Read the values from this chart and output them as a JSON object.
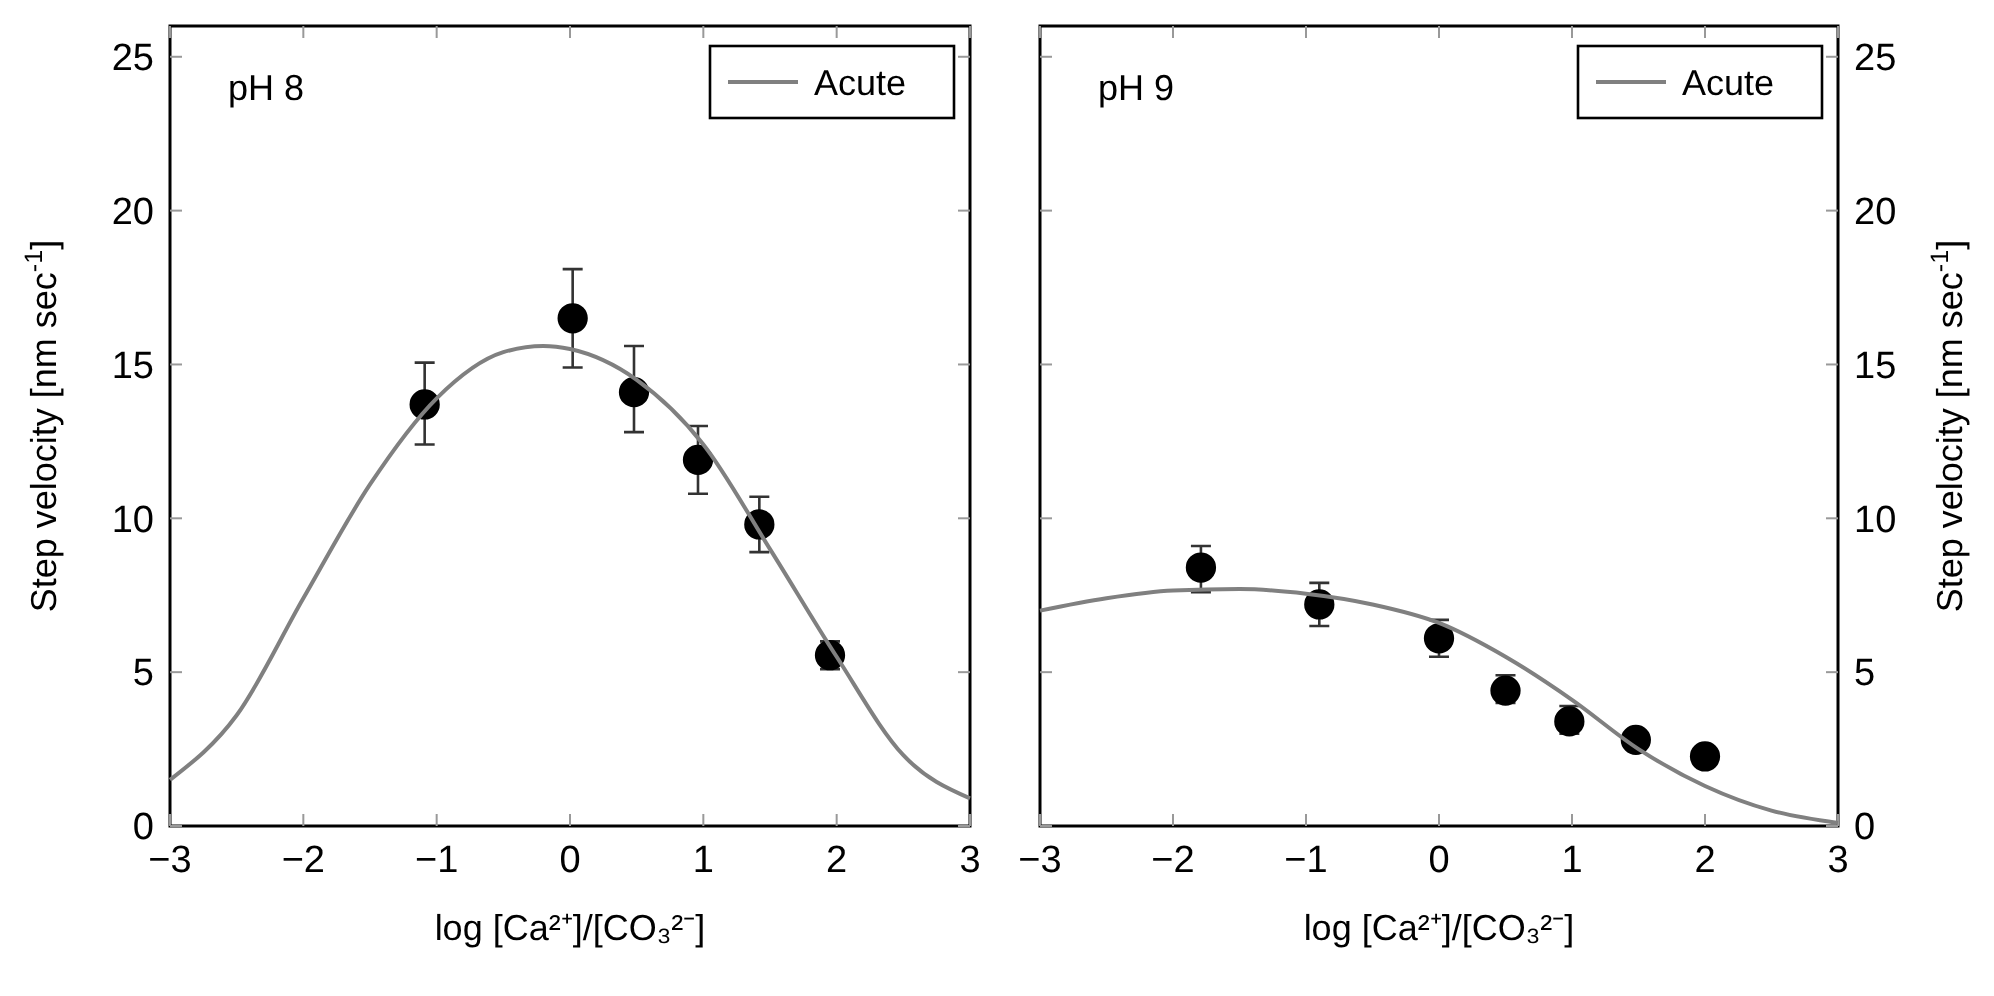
{
  "chart_data": [
    {
      "type": "scatter",
      "annotations": [
        "pH 8"
      ],
      "xlabel": "log [Ca²⁺]/[CO₃²⁻]",
      "ylabel": "Step velocity [nm sec$^{-1}$]",
      "xlim": [
        -3,
        3
      ],
      "xticks": [
        -3,
        -2,
        -1,
        0,
        1,
        2,
        3
      ],
      "ylim": [
        0,
        26
      ],
      "yticks": [
        0,
        5,
        10,
        15,
        20,
        25
      ],
      "legend": "top right",
      "grid": false,
      "series": [
        {
          "marker": "circle",
          "color": "#000000",
          "x": [
            -1.09,
            0.02,
            0.48,
            0.96,
            1.42,
            1.95
          ],
          "values": [
            13.7,
            16.5,
            14.1,
            11.9,
            9.8,
            5.55
          ],
          "errors": [
            [
              12.4,
              15.06
            ],
            [
              14.9,
              18.1
            ],
            [
              12.8,
              15.6
            ],
            [
              10.8,
              13.0
            ],
            [
              8.9,
              10.7
            ],
            [
              5.1,
              6.0
            ]
          ]
        },
        {
          "type": "line",
          "name": "Acute",
          "color": "#808080",
          "x": [
            -3,
            -2.5,
            -2,
            -1.5,
            -1,
            -0.5,
            -0.2,
            0,
            0.5,
            1,
            1.5,
            2,
            2.5,
            3
          ],
          "values": [
            1.5,
            3.6,
            7.4,
            11.1,
            13.9,
            15.4,
            15.6,
            15.5,
            14.5,
            12.4,
            9.0,
            5.5,
            2.3,
            0.9
          ]
        }
      ]
    },
    {
      "type": "scatter",
      "annotations": [
        "pH 9"
      ],
      "xlabel": "log [Ca²⁺]/[CO₃²⁻]",
      "y2label": "Step velocity [nm sec$^{-1}$]",
      "xlim": [
        -3,
        3
      ],
      "xticks": [
        -3,
        -2,
        -1,
        0,
        1,
        2,
        3
      ],
      "y2lim": [
        0,
        26
      ],
      "y2ticks": [
        0,
        5,
        10,
        15,
        20,
        25
      ],
      "legend": "top right",
      "grid": false,
      "series": [
        {
          "marker": "circle",
          "axis": "y2",
          "color": "#000000",
          "x": [
            -1.79,
            -0.9,
            0,
            0.5,
            0.98,
            1.48,
            2
          ],
          "values": [
            8.4,
            7.2,
            6.1,
            4.4,
            3.4,
            2.8,
            2.26
          ],
          "errors": [
            [
              7.6,
              9.1
            ],
            [
              6.5,
              7.9
            ],
            [
              5.5,
              6.7
            ],
            [
              4.0,
              4.9
            ],
            [
              3.0,
              3.9
            ],
            null,
            null
          ]
        },
        {
          "type": "line",
          "axis": "y2",
          "name": "Acute",
          "color": "#808080",
          "x": [
            -3,
            -2.5,
            -2,
            -1.5,
            -1,
            -0.5,
            0,
            0.5,
            1,
            1.5,
            2,
            2.5,
            3
          ],
          "values": [
            7.0,
            7.4,
            7.65,
            7.7,
            7.55,
            7.2,
            6.6,
            5.5,
            4.1,
            2.5,
            1.3,
            0.5,
            0.1
          ]
        }
      ]
    }
  ]
}
